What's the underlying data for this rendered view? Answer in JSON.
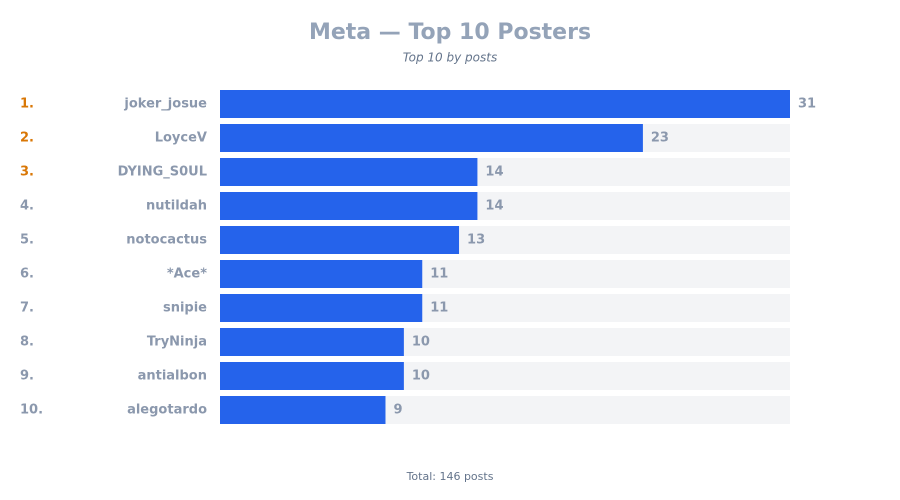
{
  "chart_data": {
    "type": "hbar",
    "title": "Meta — Top 10 Posters",
    "subtitle": "Top 10 by posts",
    "ranks": [
      "1.",
      "2.",
      "3.",
      "4.",
      "5.",
      "6.",
      "7.",
      "8.",
      "9.",
      "10."
    ],
    "categories": [
      "joker_josue",
      "LoyceV",
      "DYING_S0UL",
      "nutildah",
      "notocactus",
      "*Ace*",
      "snipie",
      "TryNinja",
      "antialbon",
      "alegotardo"
    ],
    "values": [
      31,
      23,
      14,
      14,
      13,
      11,
      11,
      10,
      10,
      9
    ],
    "color": "#2563eb",
    "track_color": "#f3f4f6",
    "footer": "Total: 146 posts"
  }
}
